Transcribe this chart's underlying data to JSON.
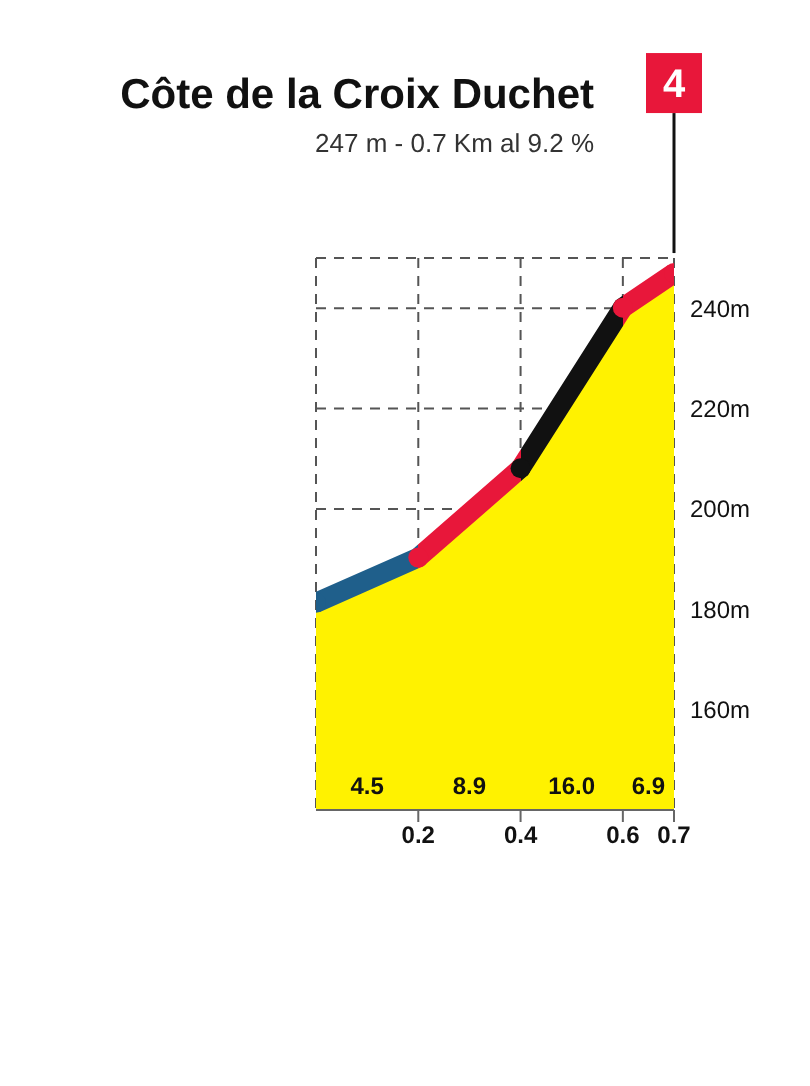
{
  "chart_data": {
    "type": "area",
    "title": "Côte de la Croix Duchet",
    "subtitle": "247 m - 0.7 Km al 9.2 %",
    "x": [
      0,
      0.2,
      0.4,
      0.6,
      0.7
    ],
    "series": [
      {
        "color": "#fff200",
        "colors": [
          "#1f5f8b",
          "#e8173a",
          "#111111",
          "#e8173a",
          "#e8173a"
        ],
        "values": [
          181.3,
          190.3,
          208.1,
          240.1,
          247
        ]
      }
    ],
    "xlim": [
      0,
      0.7
    ],
    "xticks": [
      0.2,
      0.4,
      0.6,
      0.7
    ],
    "ylim": [
      140,
      250
    ],
    "yticks": [
      {
        "value": 160,
        "label": "160m"
      },
      {
        "value": 180,
        "label": "180m"
      },
      {
        "value": 200,
        "label": "200m"
      },
      {
        "value": 220,
        "label": "220m"
      },
      {
        "value": 240,
        "label": "240m"
      }
    ],
    "grid": true,
    "annotations": [
      "4",
      "4.5",
      "8.9",
      "16.0",
      "6.9"
    ]
  }
}
